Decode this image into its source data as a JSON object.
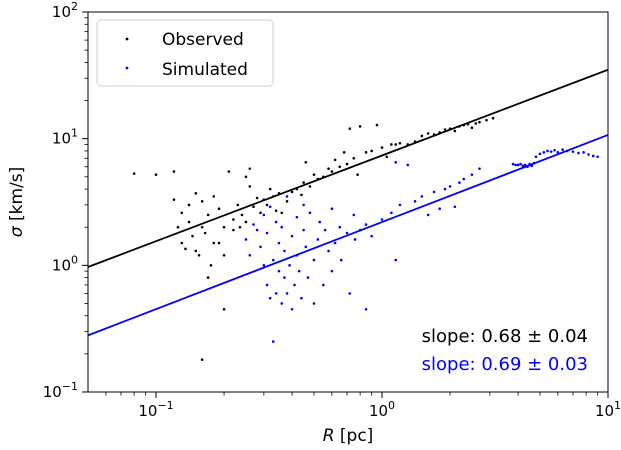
{
  "chart_data": {
    "type": "scatter",
    "title": "",
    "xlabel_var": "R",
    "xlabel_unit": " [pc]",
    "ylabel_var": "σ",
    "ylabel_unit": " [km/s]",
    "xscale": "log",
    "yscale": "log",
    "xlim": [
      0.05,
      10
    ],
    "ylim": [
      0.1,
      100
    ],
    "x_ticks": [
      {
        "value": 0.1,
        "base": "10",
        "exp": "−1"
      },
      {
        "value": 1,
        "base": "10",
        "exp": "0"
      },
      {
        "value": 10,
        "base": "10",
        "exp": "1"
      }
    ],
    "y_ticks": [
      {
        "value": 0.1,
        "base": "10",
        "exp": "−1"
      },
      {
        "value": 1,
        "base": "10",
        "exp": "0"
      },
      {
        "value": 10,
        "base": "10",
        "exp": "1"
      },
      {
        "value": 100,
        "base": "10",
        "exp": "2"
      }
    ],
    "grid": false,
    "legend_position": "top-left",
    "series": [
      {
        "name": "Observed",
        "color": "#000000",
        "fit": {
          "slope": 0.68,
          "y_at_xmin": 0.97,
          "y_at_xmax": 35
        },
        "points": [
          [
            0.08,
            5.3
          ],
          [
            0.1,
            5.2
          ],
          [
            0.12,
            5.5
          ],
          [
            0.12,
            3.3
          ],
          [
            0.125,
            2.0
          ],
          [
            0.13,
            1.5
          ],
          [
            0.13,
            2.6
          ],
          [
            0.135,
            1.35
          ],
          [
            0.14,
            3.0
          ],
          [
            0.14,
            2.2
          ],
          [
            0.145,
            1.7
          ],
          [
            0.15,
            3.7
          ],
          [
            0.15,
            1.3
          ],
          [
            0.155,
            1.2
          ],
          [
            0.16,
            3.2
          ],
          [
            0.16,
            2.0
          ],
          [
            0.165,
            1.8
          ],
          [
            0.17,
            2.5
          ],
          [
            0.17,
            0.8
          ],
          [
            0.175,
            1.0
          ],
          [
            0.18,
            3.5
          ],
          [
            0.18,
            1.5
          ],
          [
            0.19,
            2.8
          ],
          [
            0.19,
            1.5
          ],
          [
            0.2,
            1.2
          ],
          [
            0.2,
            0.45
          ],
          [
            0.2,
            2.0
          ],
          [
            0.21,
            5.5
          ],
          [
            0.22,
            2.3
          ],
          [
            0.22,
            1.9
          ],
          [
            0.23,
            3.0
          ],
          [
            0.235,
            2.0
          ],
          [
            0.24,
            2.5
          ],
          [
            0.25,
            5.0
          ],
          [
            0.25,
            2.2
          ],
          [
            0.26,
            4.2
          ],
          [
            0.27,
            2.9
          ],
          [
            0.28,
            3.4
          ],
          [
            0.29,
            2.6
          ],
          [
            0.3,
            3.3
          ],
          [
            0.31,
            3.0
          ],
          [
            0.32,
            4.0
          ],
          [
            0.33,
            3.5
          ],
          [
            0.34,
            2.7
          ],
          [
            0.35,
            3.7
          ],
          [
            0.36,
            2.6
          ],
          [
            0.38,
            3.2
          ],
          [
            0.4,
            3.8
          ],
          [
            0.42,
            4.0
          ],
          [
            0.44,
            3.6
          ],
          [
            0.45,
            4.5
          ],
          [
            0.46,
            6.5
          ],
          [
            0.48,
            4.2
          ],
          [
            0.5,
            5.2
          ],
          [
            0.52,
            4.8
          ],
          [
            0.55,
            5.0
          ],
          [
            0.58,
            5.8
          ],
          [
            0.6,
            5.5
          ],
          [
            0.62,
            6.8
          ],
          [
            0.65,
            6.0
          ],
          [
            0.68,
            7.8
          ],
          [
            0.7,
            6.3
          ],
          [
            0.72,
            12.0
          ],
          [
            0.75,
            7.0
          ],
          [
            0.78,
            5.2
          ],
          [
            0.8,
            12.5
          ],
          [
            0.85,
            7.8
          ],
          [
            0.9,
            8.0
          ],
          [
            0.95,
            12.8
          ],
          [
            1.0,
            8.5
          ],
          [
            1.05,
            7.2
          ],
          [
            1.1,
            9.0
          ],
          [
            1.15,
            9.0
          ],
          [
            1.2,
            9.2
          ],
          [
            1.3,
            9.0
          ],
          [
            1.4,
            9.5
          ],
          [
            1.5,
            10.5
          ],
          [
            1.6,
            11.0
          ],
          [
            1.7,
            10.8
          ],
          [
            1.8,
            11.2
          ],
          [
            1.9,
            11.8
          ],
          [
            2.0,
            12.0
          ],
          [
            2.1,
            11.5
          ],
          [
            2.2,
            12.5
          ],
          [
            2.3,
            12.8
          ],
          [
            2.4,
            13.0
          ],
          [
            2.5,
            12.2
          ],
          [
            2.6,
            13.2
          ],
          [
            2.7,
            13.5
          ],
          [
            2.9,
            14.0
          ],
          [
            3.1,
            14.5
          ],
          [
            0.16,
            0.18
          ],
          [
            0.55,
            0.095
          ]
        ]
      },
      {
        "name": "Simulated",
        "color": "#0000ff",
        "fit": {
          "slope": 0.69,
          "y_at_xmin": 0.28,
          "y_at_xmax": 10.7
        },
        "points": [
          [
            0.26,
            5.8
          ],
          [
            0.25,
            1.6
          ],
          [
            0.26,
            1.2
          ],
          [
            0.27,
            2.1
          ],
          [
            0.28,
            1.9
          ],
          [
            0.29,
            1.4
          ],
          [
            0.3,
            1.0
          ],
          [
            0.3,
            2.5
          ],
          [
            0.31,
            0.7
          ],
          [
            0.31,
            1.8
          ],
          [
            0.32,
            0.55
          ],
          [
            0.32,
            2.9
          ],
          [
            0.33,
            0.25
          ],
          [
            0.33,
            1.1
          ],
          [
            0.34,
            0.6
          ],
          [
            0.34,
            2.2
          ],
          [
            0.35,
            0.9
          ],
          [
            0.35,
            1.5
          ],
          [
            0.36,
            0.5
          ],
          [
            0.36,
            2.0
          ],
          [
            0.37,
            0.8
          ],
          [
            0.37,
            1.3
          ],
          [
            0.38,
            0.6
          ],
          [
            0.38,
            3.5
          ],
          [
            0.39,
            1.0
          ],
          [
            0.4,
            0.45
          ],
          [
            0.4,
            1.7
          ],
          [
            0.41,
            0.7
          ],
          [
            0.42,
            2.4
          ],
          [
            0.42,
            1.2
          ],
          [
            0.43,
            0.9
          ],
          [
            0.44,
            0.55
          ],
          [
            0.45,
            1.9
          ],
          [
            0.45,
            3.0
          ],
          [
            0.46,
            1.4
          ],
          [
            0.47,
            0.8
          ],
          [
            0.48,
            2.6
          ],
          [
            0.5,
            1.1
          ],
          [
            0.5,
            0.5
          ],
          [
            0.52,
            1.6
          ],
          [
            0.53,
            2.2
          ],
          [
            0.55,
            0.7
          ],
          [
            0.56,
            1.9
          ],
          [
            0.58,
            1.3
          ],
          [
            0.6,
            2.8
          ],
          [
            0.6,
            0.9
          ],
          [
            0.62,
            1.5
          ],
          [
            0.65,
            2.0
          ],
          [
            0.66,
            1.1
          ],
          [
            0.7,
            1.8
          ],
          [
            0.72,
            0.6
          ],
          [
            0.75,
            2.5
          ],
          [
            0.76,
            1.6
          ],
          [
            0.8,
            1.9
          ],
          [
            0.85,
            0.45
          ],
          [
            0.85,
            2.1
          ],
          [
            0.9,
            1.7
          ],
          [
            1.0,
            2.3
          ],
          [
            1.1,
            2.6
          ],
          [
            1.15,
            6.5
          ],
          [
            1.15,
            1.1
          ],
          [
            1.2,
            3.0
          ],
          [
            1.3,
            6.2
          ],
          [
            1.4,
            3.2
          ],
          [
            1.5,
            3.5
          ],
          [
            1.6,
            2.5
          ],
          [
            1.7,
            3.8
          ],
          [
            1.8,
            2.8
          ],
          [
            1.9,
            4.0
          ],
          [
            2.0,
            4.2
          ],
          [
            2.1,
            2.9
          ],
          [
            2.2,
            4.5
          ],
          [
            2.3,
            4.8
          ],
          [
            2.5,
            5.2
          ],
          [
            2.7,
            5.8
          ],
          [
            3.8,
            6.3
          ],
          [
            3.9,
            6.2
          ],
          [
            4.0,
            6.2
          ],
          [
            4.1,
            6.3
          ],
          [
            4.2,
            6.1
          ],
          [
            4.3,
            6.2
          ],
          [
            4.4,
            6.0
          ],
          [
            4.5,
            6.3
          ],
          [
            4.6,
            6.1
          ],
          [
            4.7,
            6.4
          ],
          [
            4.8,
            7.2
          ],
          [
            5.0,
            7.6
          ],
          [
            5.2,
            7.8
          ],
          [
            5.4,
            8.0
          ],
          [
            5.6,
            7.9
          ],
          [
            5.8,
            8.1
          ],
          [
            6.0,
            7.8
          ],
          [
            6.3,
            8.2
          ],
          [
            6.6,
            8.0
          ],
          [
            7.0,
            7.9
          ],
          [
            7.4,
            7.7
          ],
          [
            7.8,
            7.8
          ],
          [
            8.2,
            7.5
          ],
          [
            8.6,
            7.3
          ],
          [
            9.0,
            7.2
          ]
        ]
      }
    ],
    "annotations": [
      {
        "text": "slope: 0.68 ± 0.04",
        "color": "#000000"
      },
      {
        "text": "slope: 0.69 ± 0.03",
        "color": "#0000ff"
      }
    ]
  }
}
